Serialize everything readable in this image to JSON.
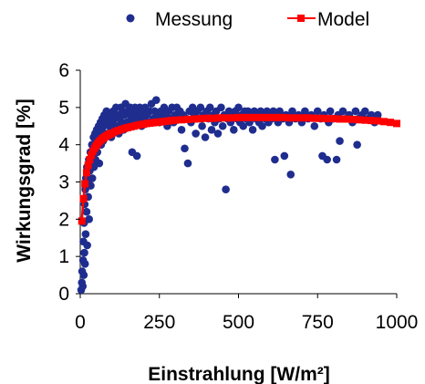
{
  "chart_data": {
    "type": "scatter",
    "xlabel": "Einstrahlung [W/m²]",
    "ylabel": "Wirkungsgrad [%]",
    "xlim": [
      0,
      1000
    ],
    "ylim": [
      0,
      6
    ],
    "xticks": [
      0,
      250,
      500,
      750,
      1000
    ],
    "yticks": [
      0,
      1,
      2,
      3,
      4,
      5,
      6
    ],
    "grid": false,
    "legend": "top",
    "colors": {
      "measurement": "#1f2d8f",
      "model": "#ff0000"
    },
    "series": [
      {
        "name": "Messung",
        "kind": "scatter",
        "points": [
          [
            3,
            0.1
          ],
          [
            5,
            0.3
          ],
          [
            6,
            0.6
          ],
          [
            8,
            0.2
          ],
          [
            9,
            0.9
          ],
          [
            10,
            1.4
          ],
          [
            11,
            0.5
          ],
          [
            12,
            1.9
          ],
          [
            13,
            1.1
          ],
          [
            14,
            2.4
          ],
          [
            15,
            0.8
          ],
          [
            16,
            2.8
          ],
          [
            17,
            1.6
          ],
          [
            18,
            3.1
          ],
          [
            20,
            2.2
          ],
          [
            21,
            3.4
          ],
          [
            22,
            1.3
          ],
          [
            24,
            3.0
          ],
          [
            25,
            2.6
          ],
          [
            27,
            3.6
          ],
          [
            28,
            2.0
          ],
          [
            30,
            3.3
          ],
          [
            32,
            3.8
          ],
          [
            33,
            2.9
          ],
          [
            35,
            3.5
          ],
          [
            37,
            4.0
          ],
          [
            38,
            3.1
          ],
          [
            40,
            3.7
          ],
          [
            42,
            4.2
          ],
          [
            43,
            3.4
          ],
          [
            45,
            3.9
          ],
          [
            47,
            4.3
          ],
          [
            48,
            3.6
          ],
          [
            50,
            4.1
          ],
          [
            52,
            4.4
          ],
          [
            54,
            3.8
          ],
          [
            56,
            4.2
          ],
          [
            58,
            4.5
          ],
          [
            60,
            3.5
          ],
          [
            62,
            4.3
          ],
          [
            64,
            4.6
          ],
          [
            66,
            4.0
          ],
          [
            68,
            4.4
          ],
          [
            70,
            4.7
          ],
          [
            72,
            4.1
          ],
          [
            74,
            4.5
          ],
          [
            76,
            4.8
          ],
          [
            78,
            4.2
          ],
          [
            80,
            4.6
          ],
          [
            83,
            4.9
          ],
          [
            86,
            4.3
          ],
          [
            89,
            4.7
          ],
          [
            92,
            4.5
          ],
          [
            95,
            4.8
          ],
          [
            98,
            4.2
          ],
          [
            101,
            4.6
          ],
          [
            104,
            4.9
          ],
          [
            107,
            4.4
          ],
          [
            110,
            4.7
          ],
          [
            113,
            5.0
          ],
          [
            116,
            4.5
          ],
          [
            119,
            4.8
          ],
          [
            122,
            4.3
          ],
          [
            125,
            4.7
          ],
          [
            128,
            5.0
          ],
          [
            131,
            4.6
          ],
          [
            134,
            4.9
          ],
          [
            137,
            4.4
          ],
          [
            140,
            4.8
          ],
          [
            143,
            5.1
          ],
          [
            146,
            4.6
          ],
          [
            149,
            4.9
          ],
          [
            152,
            4.5
          ],
          [
            155,
            4.8
          ],
          [
            158,
            5.0
          ],
          [
            161,
            4.7
          ],
          [
            164,
            3.8
          ],
          [
            167,
            4.9
          ],
          [
            170,
            4.6
          ],
          [
            173,
            5.0
          ],
          [
            176,
            4.8
          ],
          [
            179,
            3.7
          ],
          [
            182,
            4.9
          ],
          [
            185,
            4.7
          ],
          [
            188,
            5.0
          ],
          [
            191,
            4.8
          ],
          [
            194,
            4.5
          ],
          [
            197,
            4.9
          ],
          [
            200,
            4.7
          ],
          [
            205,
            5.0
          ],
          [
            210,
            4.8
          ],
          [
            215,
            4.6
          ],
          [
            220,
            4.9
          ],
          [
            225,
            5.1
          ],
          [
            230,
            4.7
          ],
          [
            235,
            4.9
          ],
          [
            240,
            5.2
          ],
          [
            245,
            4.8
          ],
          [
            250,
            4.6
          ],
          [
            255,
            4.9
          ],
          [
            260,
            4.7
          ],
          [
            265,
            5.0
          ],
          [
            270,
            4.8
          ],
          [
            275,
            4.5
          ],
          [
            280,
            4.9
          ],
          [
            285,
            4.7
          ],
          [
            290,
            5.0
          ],
          [
            295,
            4.6
          ],
          [
            300,
            4.8
          ],
          [
            305,
            5.0
          ],
          [
            310,
            4.7
          ],
          [
            315,
            4.9
          ],
          [
            320,
            4.4
          ],
          [
            325,
            4.8
          ],
          [
            330,
            3.9
          ],
          [
            335,
            4.7
          ],
          [
            340,
            3.5
          ],
          [
            345,
            4.9
          ],
          [
            350,
            4.6
          ],
          [
            355,
            5.0
          ],
          [
            360,
            4.8
          ],
          [
            365,
            4.3
          ],
          [
            370,
            4.9
          ],
          [
            375,
            4.7
          ],
          [
            380,
            5.0
          ],
          [
            385,
            4.5
          ],
          [
            390,
            4.8
          ],
          [
            395,
            4.2
          ],
          [
            400,
            4.9
          ],
          [
            405,
            4.7
          ],
          [
            410,
            5.0
          ],
          [
            415,
            4.4
          ],
          [
            420,
            4.8
          ],
          [
            425,
            4.6
          ],
          [
            430,
            4.9
          ],
          [
            435,
            4.3
          ],
          [
            440,
            4.7
          ],
          [
            445,
            5.0
          ],
          [
            450,
            4.5
          ],
          [
            455,
            4.8
          ],
          [
            460,
            2.8
          ],
          [
            465,
            4.7
          ],
          [
            470,
            4.9
          ],
          [
            475,
            4.6
          ],
          [
            480,
            4.8
          ],
          [
            485,
            4.4
          ],
          [
            490,
            4.9
          ],
          [
            495,
            4.7
          ],
          [
            500,
            5.0
          ],
          [
            505,
            4.6
          ],
          [
            510,
            4.8
          ],
          [
            515,
            4.5
          ],
          [
            520,
            4.9
          ],
          [
            525,
            4.7
          ],
          [
            530,
            4.9
          ],
          [
            535,
            4.6
          ],
          [
            540,
            4.8
          ],
          [
            545,
            4.4
          ],
          [
            550,
            4.9
          ],
          [
            555,
            4.7
          ],
          [
            560,
            4.8
          ],
          [
            565,
            4.6
          ],
          [
            570,
            4.9
          ],
          [
            575,
            4.5
          ],
          [
            580,
            4.8
          ],
          [
            585,
            4.7
          ],
          [
            590,
            4.9
          ],
          [
            595,
            4.6
          ],
          [
            600,
            4.8
          ],
          [
            605,
            4.7
          ],
          [
            610,
            4.9
          ],
          [
            615,
            3.6
          ],
          [
            620,
            4.8
          ],
          [
            625,
            4.6
          ],
          [
            630,
            4.9
          ],
          [
            640,
            4.7
          ],
          [
            645,
            3.7
          ],
          [
            650,
            4.8
          ],
          [
            660,
            4.6
          ],
          [
            665,
            3.2
          ],
          [
            670,
            4.9
          ],
          [
            680,
            4.7
          ],
          [
            690,
            4.8
          ],
          [
            700,
            4.6
          ],
          [
            710,
            4.9
          ],
          [
            720,
            4.7
          ],
          [
            730,
            4.8
          ],
          [
            740,
            4.5
          ],
          [
            750,
            4.9
          ],
          [
            760,
            4.7
          ],
          [
            765,
            3.7
          ],
          [
            770,
            4.8
          ],
          [
            780,
            3.6
          ],
          [
            785,
            4.6
          ],
          [
            790,
            4.9
          ],
          [
            800,
            4.7
          ],
          [
            810,
            3.6
          ],
          [
            815,
            4.8
          ],
          [
            820,
            4.1
          ],
          [
            830,
            4.9
          ],
          [
            840,
            4.7
          ],
          [
            850,
            4.8
          ],
          [
            860,
            4.6
          ],
          [
            870,
            4.9
          ],
          [
            875,
            4.0
          ],
          [
            880,
            4.7
          ],
          [
            890,
            4.8
          ],
          [
            900,
            4.9
          ],
          [
            910,
            4.7
          ],
          [
            920,
            4.8
          ],
          [
            930,
            4.6
          ],
          [
            940,
            4.8
          ]
        ]
      },
      {
        "name": "Model",
        "kind": "line",
        "points": [
          [
            5,
            1.95
          ],
          [
            10,
            2.55
          ],
          [
            15,
            2.95
          ],
          [
            20,
            3.25
          ],
          [
            25,
            3.45
          ],
          [
            30,
            3.6
          ],
          [
            35,
            3.72
          ],
          [
            40,
            3.82
          ],
          [
            45,
            3.9
          ],
          [
            50,
            3.97
          ],
          [
            55,
            4.03
          ],
          [
            60,
            4.08
          ],
          [
            65,
            4.12
          ],
          [
            70,
            4.16
          ],
          [
            75,
            4.19
          ],
          [
            80,
            4.22
          ],
          [
            85,
            4.25
          ],
          [
            90,
            4.27
          ],
          [
            95,
            4.29
          ],
          [
            100,
            4.31
          ],
          [
            110,
            4.35
          ],
          [
            120,
            4.38
          ],
          [
            130,
            4.41
          ],
          [
            140,
            4.44
          ],
          [
            150,
            4.46
          ],
          [
            160,
            4.48
          ],
          [
            170,
            4.5
          ],
          [
            180,
            4.52
          ],
          [
            190,
            4.54
          ],
          [
            200,
            4.55
          ],
          [
            210,
            4.57
          ],
          [
            220,
            4.58
          ],
          [
            230,
            4.59
          ],
          [
            240,
            4.6
          ],
          [
            250,
            4.61
          ],
          [
            260,
            4.62
          ],
          [
            270,
            4.63
          ],
          [
            280,
            4.64
          ],
          [
            290,
            4.65
          ],
          [
            300,
            4.66
          ],
          [
            320,
            4.67
          ],
          [
            340,
            4.68
          ],
          [
            360,
            4.69
          ],
          [
            380,
            4.7
          ],
          [
            400,
            4.71
          ],
          [
            420,
            4.71
          ],
          [
            440,
            4.72
          ],
          [
            460,
            4.72
          ],
          [
            480,
            4.72
          ],
          [
            500,
            4.73
          ],
          [
            520,
            4.73
          ],
          [
            540,
            4.73
          ],
          [
            560,
            4.73
          ],
          [
            580,
            4.73
          ],
          [
            600,
            4.73
          ],
          [
            620,
            4.73
          ],
          [
            640,
            4.73
          ],
          [
            660,
            4.72
          ],
          [
            680,
            4.72
          ],
          [
            700,
            4.72
          ],
          [
            720,
            4.72
          ],
          [
            740,
            4.71
          ],
          [
            760,
            4.71
          ],
          [
            780,
            4.7
          ],
          [
            800,
            4.7
          ],
          [
            820,
            4.69
          ],
          [
            840,
            4.69
          ],
          [
            860,
            4.68
          ],
          [
            880,
            4.67
          ],
          [
            900,
            4.66
          ],
          [
            920,
            4.65
          ],
          [
            940,
            4.64
          ],
          [
            960,
            4.62
          ],
          [
            980,
            4.6
          ],
          [
            1000,
            4.57
          ]
        ]
      }
    ]
  }
}
